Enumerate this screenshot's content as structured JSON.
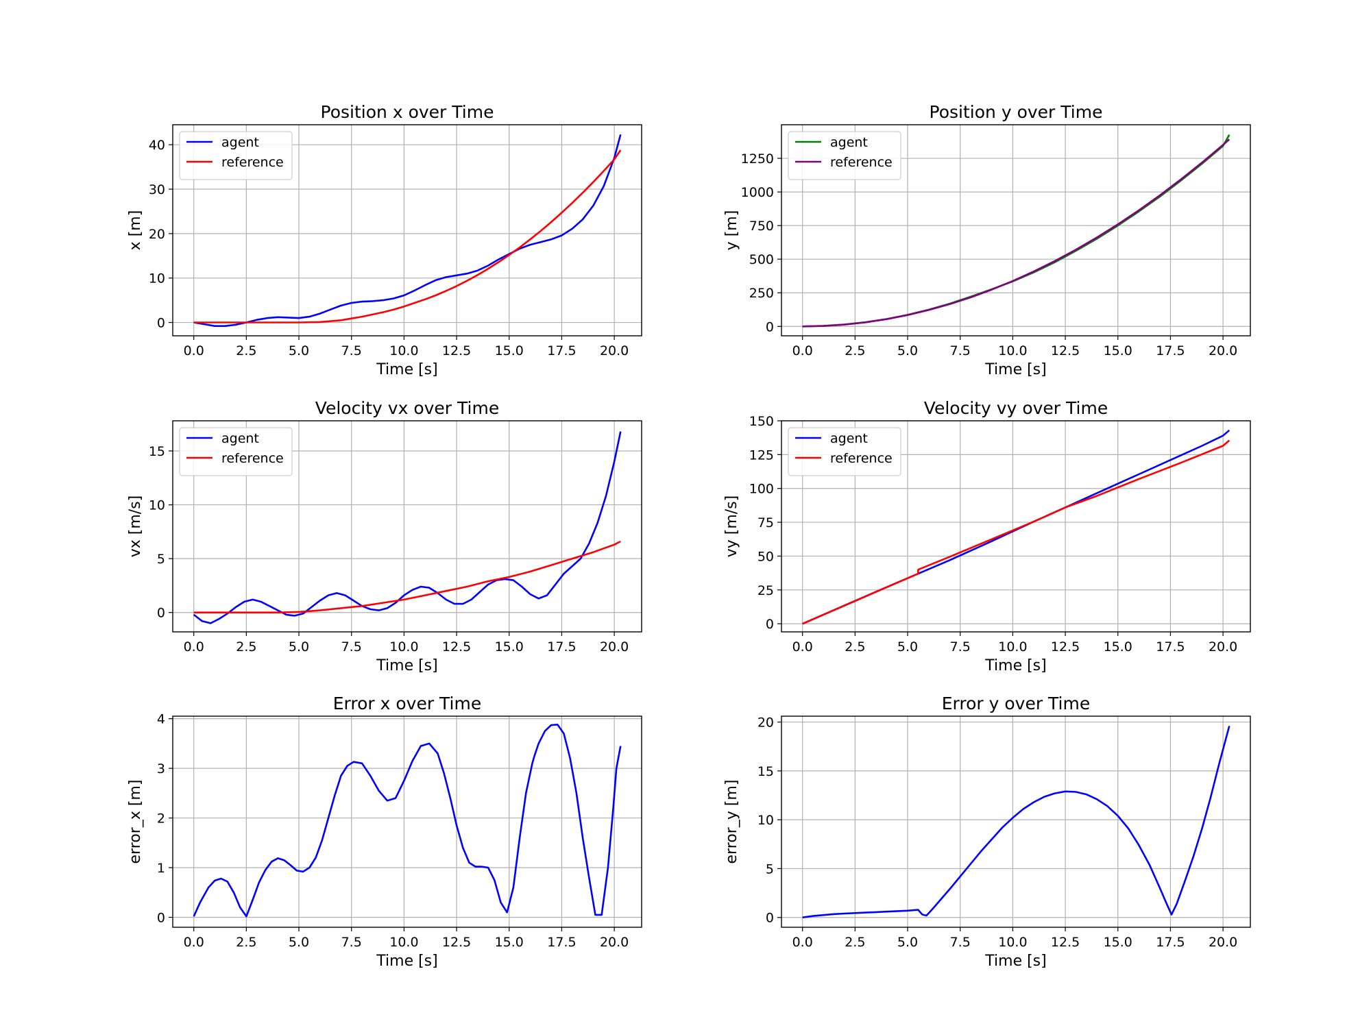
{
  "chart_data": [
    {
      "type": "line",
      "title": "Position x over Time",
      "xlabel": "Time [s]",
      "ylabel": "x [m]",
      "xlim": [
        -1.0,
        21.3
      ],
      "ylim": [
        -3,
        44.5
      ],
      "xticks": [
        0,
        2.5,
        5,
        7.5,
        10,
        12.5,
        15,
        17.5,
        20
      ],
      "xtick_labels": [
        "0.0",
        "2.5",
        "5.0",
        "7.5",
        "10.0",
        "12.5",
        "15.0",
        "17.5",
        "20.0"
      ],
      "yticks": [
        0,
        10,
        20,
        30,
        40
      ],
      "ytick_labels": [
        "0",
        "10",
        "20",
        "30",
        "40"
      ],
      "grid": true,
      "legend": "upper left",
      "series": [
        {
          "name": "agent",
          "color": "#0000ff",
          "x": [
            0,
            0.5,
            1,
            1.5,
            2,
            2.5,
            3,
            3.5,
            4,
            4.5,
            5,
            5.5,
            6,
            6.5,
            7,
            7.5,
            8,
            8.5,
            9,
            9.5,
            10,
            10.5,
            11,
            11.5,
            12,
            12.5,
            13,
            13.5,
            14,
            14.5,
            15,
            15.5,
            16,
            16.5,
            17,
            17.5,
            18,
            18.5,
            19,
            19.5,
            20,
            20.3
          ],
          "y": [
            0,
            -0.4,
            -0.8,
            -0.8,
            -0.5,
            0,
            0.6,
            1.0,
            1.2,
            1.1,
            1.0,
            1.3,
            2.0,
            2.9,
            3.8,
            4.4,
            4.7,
            4.8,
            5.0,
            5.4,
            6.1,
            7.2,
            8.4,
            9.5,
            10.2,
            10.6,
            11.0,
            11.7,
            12.8,
            14.2,
            15.4,
            16.6,
            17.5,
            18.1,
            18.7,
            19.6,
            21.1,
            23.2,
            26.3,
            30.7,
            37.0,
            42.3
          ]
        },
        {
          "name": "reference",
          "color": "#ff0000",
          "x": [
            0,
            1,
            2,
            3,
            4,
            5,
            6,
            7,
            7.5,
            8,
            8.5,
            9,
            9.5,
            10,
            10.5,
            11,
            11.5,
            12,
            12.5,
            13,
            13.5,
            14,
            14.5,
            15,
            15.5,
            16,
            16.5,
            17,
            17.5,
            18,
            18.5,
            19,
            19.5,
            20,
            20.3
          ],
          "y": [
            0,
            0,
            0,
            0,
            0,
            0,
            0.1,
            0.5,
            0.9,
            1.3,
            1.8,
            2.3,
            2.9,
            3.6,
            4.4,
            5.2,
            6.1,
            7.1,
            8.2,
            9.4,
            10.7,
            12.1,
            13.6,
            15.2,
            16.9,
            18.7,
            20.6,
            22.6,
            24.7,
            26.9,
            29.2,
            31.6,
            34.1,
            36.7,
            38.8
          ]
        }
      ]
    },
    {
      "type": "line",
      "title": "Position y over Time",
      "xlabel": "Time [s]",
      "ylabel": "y [m]",
      "xlim": [
        -1.0,
        21.3
      ],
      "ylim": [
        -70,
        1500
      ],
      "xticks": [
        0,
        2.5,
        5,
        7.5,
        10,
        12.5,
        15,
        17.5,
        20
      ],
      "xtick_labels": [
        "0.0",
        "2.5",
        "5.0",
        "7.5",
        "10.0",
        "12.5",
        "15.0",
        "17.5",
        "20.0"
      ],
      "yticks": [
        0,
        250,
        500,
        750,
        1000,
        1250
      ],
      "ytick_labels": [
        "0",
        "250",
        "500",
        "750",
        "1000",
        "1250"
      ],
      "grid": true,
      "legend": "upper left",
      "series": [
        {
          "name": "agent",
          "color": "#008000",
          "x": [
            0,
            1,
            2,
            3,
            4,
            5,
            6,
            7,
            8,
            9,
            10,
            11,
            12,
            13,
            14,
            15,
            16,
            17,
            18,
            19,
            20,
            20.3
          ],
          "y": [
            0,
            3.5,
            14,
            31,
            55,
            86,
            124,
            169,
            221,
            276,
            335,
            402,
            477,
            562,
            652,
            750,
            855,
            966,
            1085,
            1210,
            1342,
            1425
          ]
        },
        {
          "name": "reference",
          "color": "#800080",
          "x": [
            0,
            1,
            2,
            3,
            4,
            5,
            6,
            7,
            8,
            9,
            10,
            11,
            12,
            13,
            14,
            15,
            16,
            17,
            18,
            19,
            20,
            20.3
          ],
          "y": [
            0,
            3.4,
            13.5,
            30.4,
            54,
            84.4,
            121.5,
            165.4,
            216,
            273.4,
            337.5,
            408.4,
            486,
            570.4,
            661.5,
            759.4,
            864,
            975.4,
            1093.5,
            1218.4,
            1350,
            1391
          ]
        }
      ]
    },
    {
      "type": "line",
      "title": "Velocity vx over Time",
      "xlabel": "Time [s]",
      "ylabel": "vx [m/s]",
      "xlim": [
        -1.0,
        21.3
      ],
      "ylim": [
        -1.8,
        17.8
      ],
      "xticks": [
        0,
        2.5,
        5,
        7.5,
        10,
        12.5,
        15,
        17.5,
        20
      ],
      "xtick_labels": [
        "0.0",
        "2.5",
        "5.0",
        "7.5",
        "10.0",
        "12.5",
        "15.0",
        "17.5",
        "20.0"
      ],
      "yticks": [
        0,
        5,
        10,
        15
      ],
      "ytick_labels": [
        "0",
        "5",
        "10",
        "15"
      ],
      "grid": true,
      "legend": "upper left",
      "series": [
        {
          "name": "agent",
          "color": "#0000ff",
          "x": [
            0,
            0.4,
            0.8,
            1.2,
            1.6,
            2.0,
            2.4,
            2.8,
            3.2,
            3.6,
            4.0,
            4.4,
            4.8,
            5.2,
            5.6,
            6.0,
            6.4,
            6.8,
            7.2,
            7.6,
            8.0,
            8.4,
            8.8,
            9.2,
            9.6,
            10.0,
            10.4,
            10.8,
            11.2,
            11.6,
            12.0,
            12.4,
            12.8,
            13.2,
            13.6,
            14.0,
            14.4,
            14.8,
            15.2,
            15.6,
            16.0,
            16.4,
            16.8,
            17.2,
            17.6,
            18.0,
            18.4,
            18.8,
            19.2,
            19.6,
            20.0,
            20.3
          ],
          "y": [
            -0.2,
            -0.8,
            -1.0,
            -0.6,
            -0.1,
            0.5,
            1.0,
            1.2,
            1.0,
            0.6,
            0.2,
            -0.2,
            -0.3,
            -0.1,
            0.5,
            1.1,
            1.6,
            1.8,
            1.6,
            1.1,
            0.6,
            0.3,
            0.2,
            0.4,
            0.9,
            1.6,
            2.1,
            2.4,
            2.3,
            1.8,
            1.2,
            0.8,
            0.8,
            1.2,
            1.9,
            2.6,
            3.0,
            3.1,
            3.0,
            2.4,
            1.7,
            1.3,
            1.6,
            2.6,
            3.6,
            4.3,
            5.0,
            6.4,
            8.3,
            10.8,
            14.0,
            16.8
          ]
        },
        {
          "name": "reference",
          "color": "#ff0000",
          "x": [
            0,
            2,
            4,
            5,
            6,
            7,
            8,
            9,
            10,
            11,
            12,
            13,
            14,
            15,
            16,
            17,
            18,
            19,
            20,
            20.3
          ],
          "y": [
            0,
            0,
            0,
            0.05,
            0.2,
            0.4,
            0.6,
            0.9,
            1.2,
            1.6,
            2.0,
            2.4,
            2.9,
            3.3,
            3.8,
            4.4,
            5.0,
            5.6,
            6.3,
            6.6
          ]
        }
      ]
    },
    {
      "type": "line",
      "title": "Velocity vy over Time",
      "xlabel": "Time [s]",
      "ylabel": "vy [m/s]",
      "xlim": [
        -1.0,
        21.3
      ],
      "ylim": [
        -6,
        150
      ],
      "xticks": [
        0,
        2.5,
        5,
        7.5,
        10,
        12.5,
        15,
        17.5,
        20
      ],
      "xtick_labels": [
        "0.0",
        "2.5",
        "5.0",
        "7.5",
        "10.0",
        "12.5",
        "15.0",
        "17.5",
        "20.0"
      ],
      "yticks": [
        0,
        25,
        50,
        75,
        100,
        125,
        150
      ],
      "ytick_labels": [
        "0",
        "25",
        "50",
        "75",
        "100",
        "125",
        "150"
      ],
      "grid": true,
      "legend": "upper left",
      "series": [
        {
          "name": "agent",
          "color": "#0000ff",
          "x": [
            0,
            2,
            4,
            5.5,
            7,
            9,
            11,
            12.5,
            14,
            16,
            18,
            19,
            20,
            20.3
          ],
          "y": [
            0,
            13.5,
            27,
            37,
            47,
            61,
            75.5,
            86,
            96.5,
            110.5,
            124.5,
            131.5,
            139,
            143
          ]
        },
        {
          "name": "reference",
          "color": "#ff0000",
          "x": [
            0,
            2,
            4,
            5.5,
            5.5,
            7,
            9,
            11,
            12.5,
            14,
            16,
            18,
            20,
            20.3
          ],
          "y": [
            0,
            13.5,
            27,
            37,
            40,
            49.5,
            62.5,
            75.5,
            86,
            94.5,
            107,
            119,
            131.5,
            135.5
          ]
        }
      ]
    },
    {
      "type": "line",
      "title": "Error x over Time",
      "xlabel": "Time [s]",
      "ylabel": "error_x [m]",
      "xlim": [
        -1.0,
        21.3
      ],
      "ylim": [
        -0.2,
        4.05
      ],
      "xticks": [
        0,
        2.5,
        5,
        7.5,
        10,
        12.5,
        15,
        17.5,
        20
      ],
      "xtick_labels": [
        "0.0",
        "2.5",
        "5.0",
        "7.5",
        "10.0",
        "12.5",
        "15.0",
        "17.5",
        "20.0"
      ],
      "yticks": [
        0,
        1,
        2,
        3,
        4
      ],
      "ytick_labels": [
        "0",
        "1",
        "2",
        "3",
        "4"
      ],
      "grid": true,
      "series": [
        {
          "name": "",
          "color": "#0000ff",
          "x": [
            0,
            0.3,
            0.7,
            1.0,
            1.3,
            1.6,
            1.9,
            2.2,
            2.5,
            2.8,
            3.1,
            3.4,
            3.7,
            4.0,
            4.3,
            4.6,
            4.9,
            5.2,
            5.5,
            5.8,
            6.1,
            6.4,
            6.7,
            7.0,
            7.3,
            7.6,
            8.0,
            8.4,
            8.8,
            9.2,
            9.6,
            10.0,
            10.4,
            10.8,
            11.2,
            11.6,
            11.9,
            12.2,
            12.5,
            12.8,
            13.1,
            13.4,
            13.7,
            14.0,
            14.3,
            14.6,
            14.9,
            15.2,
            15.5,
            15.8,
            16.1,
            16.2,
            16.4,
            16.7,
            17.0,
            17.3,
            17.6,
            17.9,
            18.2,
            18.5,
            18.8,
            19.1,
            19.4,
            19.7,
            19.95,
            20.1,
            20.3
          ],
          "y": [
            0.02,
            0.3,
            0.6,
            0.74,
            0.78,
            0.72,
            0.5,
            0.2,
            0.02,
            0.35,
            0.7,
            0.95,
            1.12,
            1.19,
            1.15,
            1.05,
            0.94,
            0.92,
            1.0,
            1.2,
            1.55,
            2.0,
            2.45,
            2.85,
            3.05,
            3.13,
            3.1,
            2.85,
            2.55,
            2.35,
            2.4,
            2.75,
            3.15,
            3.45,
            3.5,
            3.3,
            2.9,
            2.4,
            1.85,
            1.4,
            1.1,
            1.02,
            1.02,
            1.0,
            0.75,
            0.3,
            0.1,
            0.6,
            1.6,
            2.5,
            3.1,
            3.25,
            3.5,
            3.75,
            3.87,
            3.88,
            3.7,
            3.2,
            2.5,
            1.6,
            0.8,
            0.05,
            0.05,
            1.0,
            2.2,
            3.0,
            3.45
          ]
        }
      ]
    },
    {
      "type": "line",
      "title": "Error y over Time",
      "xlabel": "Time [s]",
      "ylabel": "error_y [m]",
      "xlim": [
        -1.0,
        21.3
      ],
      "ylim": [
        -1,
        20.6
      ],
      "xticks": [
        0,
        2.5,
        5,
        7.5,
        10,
        12.5,
        15,
        17.5,
        20
      ],
      "xtick_labels": [
        "0.0",
        "2.5",
        "5.0",
        "7.5",
        "10.0",
        "12.5",
        "15.0",
        "17.5",
        "20.0"
      ],
      "yticks": [
        0,
        5,
        10,
        15,
        20
      ],
      "ytick_labels": [
        "0",
        "5",
        "10",
        "15",
        "20"
      ],
      "grid": true,
      "series": [
        {
          "name": "",
          "color": "#0000ff",
          "x": [
            0,
            0.5,
            1,
            1.5,
            2,
            3,
            4,
            5,
            5.5,
            5.7,
            5.9,
            6.2,
            6.6,
            7.0,
            7.5,
            8.0,
            8.5,
            9.0,
            9.5,
            10.0,
            10.5,
            11.0,
            11.5,
            12.0,
            12.5,
            13.0,
            13.5,
            14.0,
            14.5,
            15.0,
            15.5,
            16.0,
            16.5,
            17.0,
            17.3,
            17.55,
            17.8,
            18.2,
            18.6,
            19.0,
            19.4,
            19.8,
            20.3
          ],
          "y": [
            0,
            0.15,
            0.25,
            0.35,
            0.4,
            0.5,
            0.6,
            0.7,
            0.78,
            0.3,
            0.2,
            0.9,
            1.9,
            2.9,
            4.2,
            5.5,
            6.8,
            8.0,
            9.2,
            10.2,
            11.1,
            11.8,
            12.35,
            12.7,
            12.9,
            12.85,
            12.6,
            12.1,
            11.4,
            10.4,
            9.1,
            7.4,
            5.4,
            3.0,
            1.5,
            0.3,
            1.4,
            3.8,
            6.3,
            9.1,
            12.2,
            15.6,
            19.6
          ]
        }
      ]
    }
  ]
}
